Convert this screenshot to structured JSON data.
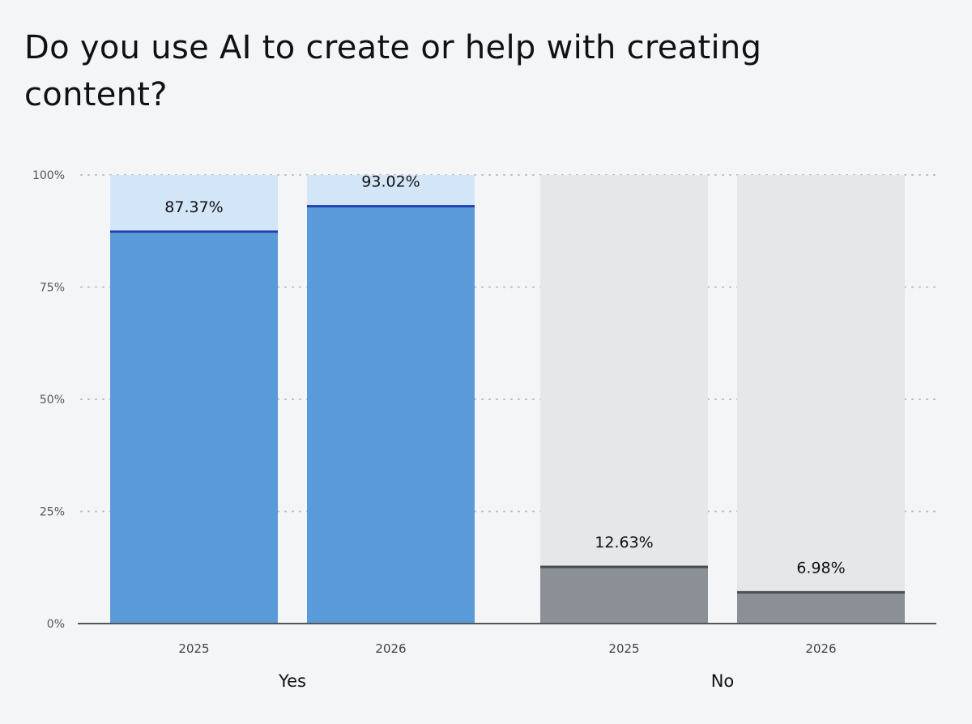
{
  "chart_data": {
    "type": "bar",
    "title": "Do you use AI to create or help with creating content?",
    "ylim": [
      0,
      100
    ],
    "y_ticks": [
      "0%",
      "25%",
      "50%",
      "75%",
      "100%"
    ],
    "y_tick_values": [
      0,
      25,
      50,
      75,
      100
    ],
    "grid": "dotted-horizontal",
    "groups": [
      {
        "label": "Yes",
        "color": "#5b9ad9",
        "track_color": "#d3e6f7",
        "marker_color": "#1f3fb0",
        "bars": [
          {
            "year": "2025",
            "value": 87.37,
            "label": "87.37%"
          },
          {
            "year": "2026",
            "value": 93.02,
            "label": "93.02%"
          }
        ]
      },
      {
        "label": "No",
        "color": "#8b8f96",
        "track_color": "#e6e7e9",
        "marker_color": "#4a4d52",
        "bars": [
          {
            "year": "2025",
            "value": 12.63,
            "label": "12.63%"
          },
          {
            "year": "2026",
            "value": 6.98,
            "label": "6.98%"
          }
        ]
      }
    ]
  }
}
